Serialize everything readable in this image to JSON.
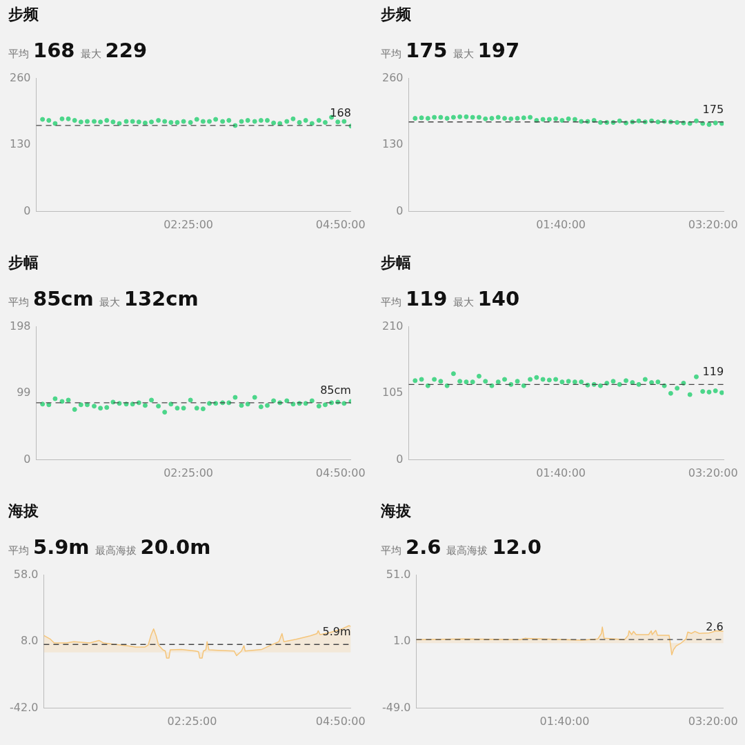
{
  "chart_data": [
    {
      "type": "scatter",
      "title": "步频",
      "subtitle": "平均 168 最大 229",
      "marker": "circle",
      "xlim": [
        0,
        5
      ],
      "xticks": [
        {
          "value": 2.4167,
          "label": "02:25:00"
        },
        {
          "value": 4.8333,
          "label": "04:50:00"
        }
      ],
      "ylim": [
        0,
        260
      ],
      "yticks": [
        0,
        130,
        260
      ],
      "ref_lines": [
        {
          "axis": "y",
          "value": 168,
          "label": "168",
          "color": "#444444",
          "line_style": "dashed"
        }
      ],
      "series": [
        {
          "color": "#4cd68a",
          "x": [
            0.1,
            0.2,
            0.3,
            0.41,
            0.51,
            0.61,
            0.71,
            0.81,
            0.92,
            1.02,
            1.12,
            1.22,
            1.32,
            1.43,
            1.53,
            1.63,
            1.73,
            1.83,
            1.94,
            2.04,
            2.14,
            2.24,
            2.34,
            2.45,
            2.55,
            2.65,
            2.75,
            2.85,
            2.96,
            3.06,
            3.16,
            3.26,
            3.36,
            3.47,
            3.57,
            3.67,
            3.77,
            3.87,
            3.98,
            4.08,
            4.18,
            4.28,
            4.38,
            4.49,
            4.59,
            4.69,
            4.79,
            4.89,
            5.0
          ],
          "values": [
            180,
            178,
            172,
            181,
            181,
            178,
            175,
            176,
            176,
            175,
            178,
            175,
            172,
            176,
            176,
            175,
            173,
            175,
            178,
            176,
            174,
            174,
            176,
            174,
            180,
            176,
            176,
            180,
            176,
            178,
            168,
            176,
            178,
            176,
            178,
            178,
            173,
            172,
            176,
            181,
            174,
            178,
            172,
            178,
            174,
            184,
            175,
            176,
            167
          ]
        }
      ]
    },
    {
      "type": "scatter",
      "title": "步频",
      "subtitle": "平均 175 最大 197",
      "marker": "circle",
      "xlim": [
        0,
        3.45
      ],
      "xticks": [
        {
          "value": 1.6667,
          "label": "01:40:00"
        },
        {
          "value": 3.3333,
          "label": "03:20:00"
        }
      ],
      "ylim": [
        0,
        260
      ],
      "yticks": [
        0,
        130,
        260
      ],
      "ref_lines": [
        {
          "axis": "y",
          "value": 175,
          "label": "175",
          "color": "#444444",
          "line_style": "dashed"
        }
      ],
      "series": [
        {
          "color": "#4cd68a",
          "x": [
            0.07,
            0.14,
            0.21,
            0.28,
            0.35,
            0.42,
            0.49,
            0.56,
            0.63,
            0.7,
            0.77,
            0.84,
            0.91,
            0.98,
            1.05,
            1.12,
            1.19,
            1.26,
            1.33,
            1.4,
            1.47,
            1.54,
            1.61,
            1.68,
            1.75,
            1.82,
            1.89,
            1.96,
            2.03,
            2.1,
            2.17,
            2.24,
            2.31,
            2.38,
            2.45,
            2.52,
            2.59,
            2.66,
            2.73,
            2.8,
            2.87,
            2.94,
            3.01,
            3.08,
            3.15,
            3.22,
            3.29,
            3.36,
            3.43
          ],
          "values": [
            182,
            183,
            182,
            184,
            184,
            182,
            184,
            185,
            185,
            184,
            184,
            181,
            182,
            184,
            182,
            181,
            182,
            183,
            184,
            178,
            180,
            180,
            181,
            178,
            181,
            180,
            176,
            176,
            178,
            174,
            174,
            174,
            177,
            173,
            175,
            177,
            175,
            177,
            175,
            176,
            175,
            174,
            173,
            172,
            177,
            172,
            170,
            173,
            172
          ]
        }
      ]
    },
    {
      "type": "scatter",
      "title": "步幅",
      "subtitle": "平均 85cm 最大 132cm",
      "marker": "circle",
      "xlim": [
        0,
        5
      ],
      "xticks": [
        {
          "value": 2.4167,
          "label": "02:25:00"
        },
        {
          "value": 4.8333,
          "label": "04:50:00"
        }
      ],
      "ylim": [
        0,
        198
      ],
      "yticks": [
        0,
        99,
        198
      ],
      "ref_lines": [
        {
          "axis": "y",
          "value": 85,
          "label": "85cm",
          "color": "#444444",
          "line_style": "dashed"
        }
      ],
      "series": [
        {
          "color": "#4cd68a",
          "x": [
            0.1,
            0.2,
            0.3,
            0.41,
            0.51,
            0.61,
            0.71,
            0.81,
            0.92,
            1.02,
            1.12,
            1.22,
            1.32,
            1.43,
            1.53,
            1.63,
            1.73,
            1.83,
            1.94,
            2.04,
            2.14,
            2.24,
            2.34,
            2.45,
            2.55,
            2.65,
            2.75,
            2.85,
            2.96,
            3.06,
            3.16,
            3.26,
            3.36,
            3.47,
            3.57,
            3.67,
            3.77,
            3.87,
            3.98,
            4.08,
            4.18,
            4.28,
            4.38,
            4.49,
            4.59,
            4.69,
            4.79,
            4.89,
            5.0
          ],
          "values": [
            83,
            82,
            91,
            87,
            89,
            75,
            82,
            82,
            80,
            77,
            78,
            86,
            84,
            83,
            83,
            85,
            81,
            89,
            80,
            71,
            83,
            77,
            77,
            89,
            77,
            76,
            84,
            84,
            85,
            85,
            93,
            81,
            83,
            93,
            79,
            81,
            88,
            85,
            88,
            83,
            84,
            84,
            88,
            80,
            82,
            85,
            86,
            84,
            87
          ]
        }
      ]
    },
    {
      "type": "scatter",
      "title": "步幅",
      "subtitle": "平均 119 最大 140",
      "marker": "circle",
      "xlim": [
        0,
        3.45
      ],
      "xticks": [
        {
          "value": 1.6667,
          "label": "01:40:00"
        },
        {
          "value": 3.3333,
          "label": "03:20:00"
        }
      ],
      "ylim": [
        0,
        210
      ],
      "yticks": [
        0,
        105,
        210
      ],
      "ref_lines": [
        {
          "axis": "y",
          "value": 119,
          "label": "119",
          "color": "#444444",
          "line_style": "dashed"
        }
      ],
      "series": [
        {
          "color": "#4cd68a",
          "x": [
            0.07,
            0.14,
            0.21,
            0.28,
            0.35,
            0.42,
            0.49,
            0.56,
            0.63,
            0.7,
            0.77,
            0.84,
            0.91,
            0.98,
            1.05,
            1.12,
            1.19,
            1.26,
            1.33,
            1.4,
            1.47,
            1.54,
            1.61,
            1.68,
            1.75,
            1.82,
            1.89,
            1.96,
            2.03,
            2.1,
            2.17,
            2.24,
            2.31,
            2.38,
            2.45,
            2.52,
            2.59,
            2.66,
            2.73,
            2.8,
            2.87,
            2.94,
            3.01,
            3.08,
            3.15,
            3.22,
            3.29,
            3.36,
            3.43
          ],
          "values": [
            125,
            127,
            117,
            127,
            124,
            117,
            136,
            124,
            123,
            123,
            132,
            124,
            117,
            123,
            127,
            119,
            124,
            117,
            127,
            130,
            127,
            126,
            127,
            123,
            124,
            123,
            123,
            118,
            119,
            117,
            121,
            124,
            119,
            125,
            122,
            119,
            127,
            122,
            123,
            117,
            105,
            113,
            121,
            103,
            131,
            108,
            107,
            109,
            106
          ]
        }
      ]
    },
    {
      "type": "area",
      "title": "海拔",
      "subtitle": "平均 5.9m 最高海拔 20.0m",
      "marker": "none",
      "xlim": [
        0,
        5
      ],
      "xticks": [
        {
          "value": 2.4167,
          "label": "02:25:00"
        },
        {
          "value": 4.8333,
          "label": "04:50:00"
        }
      ],
      "ylim": [
        -42,
        58
      ],
      "yticks": [
        {
          "value": -42,
          "label": "-42.0"
        },
        {
          "value": 8,
          "label": "8.0"
        },
        {
          "value": 58,
          "label": "58.0"
        }
      ],
      "ref_lines": [
        {
          "axis": "y",
          "value": 5.9,
          "label": "5.9m",
          "color": "#444444",
          "line_style": "dashed"
        }
      ],
      "series": [
        {
          "color": "#f5c57a",
          "x": [
            0,
            0.11,
            0.17,
            0.37,
            0.49,
            0.75,
            0.9,
            0.97,
            1.12,
            1.35,
            1.5,
            1.65,
            1.7,
            1.75,
            1.79,
            1.83,
            1.87,
            1.94,
            1.98,
            2.0,
            2.04,
            2.06,
            2.24,
            2.47,
            2.52,
            2.54,
            2.58,
            2.6,
            2.64,
            2.66,
            2.69,
            2.84,
            3.1,
            3.14,
            3.18,
            3.22,
            3.26,
            3.28,
            3.55,
            3.74,
            3.83,
            3.88,
            3.91,
            4.11,
            4.34,
            4.45,
            4.47,
            4.5,
            4.67,
            4.86,
            4.97,
            5.0
          ],
          "values": [
            12.7,
            9.8,
            7.1,
            7.1,
            8,
            7.1,
            8.9,
            7.1,
            6.2,
            5,
            4,
            4,
            5.4,
            13.3,
            17.6,
            12.4,
            5.4,
            1.9,
            1,
            -4.3,
            -4.3,
            1.9,
            2.2,
            1,
            0.5,
            -4.3,
            -4.3,
            1,
            1.9,
            8,
            1.9,
            1.5,
            1,
            -2.5,
            -0.8,
            1,
            5,
            1,
            2.2,
            6.2,
            8,
            14.1,
            8,
            9.8,
            12.4,
            14.1,
            16.2,
            13.3,
            15,
            17.6,
            20.0,
            19.4
          ]
        }
      ]
    },
    {
      "type": "area",
      "title": "海拔",
      "subtitle": "平均 2.6 最高海拔 12.0",
      "marker": "none",
      "xlim": [
        0,
        3.45
      ],
      "xticks": [
        {
          "value": 1.6667,
          "label": "01:40:00"
        },
        {
          "value": 3.3333,
          "label": "03:20:00"
        }
      ],
      "ylim": [
        -49,
        51
      ],
      "yticks": [
        {
          "value": -49,
          "label": "-49.0"
        },
        {
          "value": 1,
          "label": "1.0"
        },
        {
          "value": 51,
          "label": "51.0"
        }
      ],
      "ref_lines": [
        {
          "axis": "y",
          "value": 2.6,
          "label": "2.6",
          "color": "#444444",
          "line_style": "dashed"
        }
      ],
      "series": [
        {
          "color": "#f5c57a",
          "x": [
            0,
            0.53,
            1.17,
            1.22,
            1.86,
            2.04,
            2.08,
            2.09,
            2.11,
            2.34,
            2.38,
            2.39,
            2.42,
            2.44,
            2.47,
            2.61,
            2.64,
            2.65,
            2.69,
            2.71,
            2.84,
            2.85,
            2.87,
            2.89,
            2.92,
            2.97,
            3.03,
            3.05,
            3.09,
            3.13,
            3.18,
            3.29,
            3.37,
            3.45
          ],
          "values": [
            2.5,
            3.1,
            2.5,
            3.5,
            2.1,
            3.1,
            7.2,
            12.0,
            3.5,
            2.5,
            5.7,
            9.1,
            6.3,
            8.7,
            6.3,
            6.3,
            9.1,
            6.3,
            9.5,
            5.7,
            5.7,
            1.6,
            -8.8,
            -5,
            -2.2,
            -0.3,
            3.1,
            8.2,
            7.2,
            8.7,
            7.2,
            7.6,
            9.1,
            8.7
          ]
        }
      ]
    }
  ]
}
